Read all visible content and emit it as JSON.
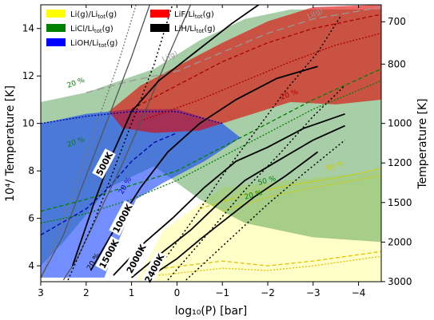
{
  "chart_data": {
    "type": "area",
    "title": "",
    "xlabel": "log₁₀(P) [bar]",
    "ylabel": "10⁴/ Temperature [K]",
    "y2label": "Temperature [K]",
    "xlim": [
      3,
      -4.5
    ],
    "ylim": [
      3.33,
      15
    ],
    "x_ticks": [
      "3",
      "2",
      "1",
      "0",
      "−1",
      "−2",
      "−3",
      "−4"
    ],
    "x_tick_values": [
      3,
      2,
      1,
      0,
      -1,
      -2,
      -3,
      -4
    ],
    "y_ticks": [
      "4",
      "6",
      "8",
      "10",
      "12",
      "14"
    ],
    "y_tick_values": [
      4,
      6,
      8,
      10,
      12,
      14
    ],
    "y2_ticks": [
      "700",
      "800",
      "1000",
      "1200",
      "1500",
      "2000",
      "3000"
    ],
    "y2_tick_values": [
      700,
      800,
      1000,
      1200,
      1500,
      2000,
      3000
    ],
    "legend_position": "top-left",
    "legend": [
      {
        "label": "Li(g)/Li",
        "sub": "tot",
        "tail": "(g)",
        "color": "#ffff00"
      },
      {
        "label": "LiF/Li",
        "sub": "tot",
        "tail": "(g)",
        "color": "#ff0000"
      },
      {
        "label": "LiCl/Li",
        "sub": "tot",
        "tail": "(g)",
        "color": "#008000"
      },
      {
        "label": "LiH/Li",
        "sub": "tot",
        "tail": "(g)",
        "color": "#000000"
      },
      {
        "label": "LiOH/Li",
        "sub": "tot",
        "tail": "(g)",
        "color": "#0000ff"
      }
    ],
    "series": [
      {
        "name": "Li(g)/Litot(g)",
        "color": "#ffff99",
        "opacity": 0.55,
        "polygon": [
          [
            3,
            3.33
          ],
          [
            0.9,
            3.33
          ],
          [
            0.3,
            5.5
          ],
          [
            -1,
            7.3
          ],
          [
            -2.5,
            7.6
          ],
          [
            -4.5,
            8.0
          ],
          [
            -4.5,
            3.33
          ],
          [
            3,
            3.33
          ]
        ]
      },
      {
        "name": "LiCl/Litot(g)",
        "color": "#2e8b2e",
        "opacity": 0.42,
        "polygon": [
          [
            3,
            10.9
          ],
          [
            2,
            11.3
          ],
          [
            0.5,
            12.3
          ],
          [
            -0.5,
            13.5
          ],
          [
            -1.5,
            14.4
          ],
          [
            -2.5,
            14.8
          ],
          [
            -4.5,
            14.8
          ],
          [
            -4.5,
            5.0
          ],
          [
            -3,
            5.2
          ],
          [
            -1.5,
            5.8
          ],
          [
            -0.5,
            6.8
          ],
          [
            0.5,
            8.2
          ],
          [
            1.5,
            7.3
          ],
          [
            2.5,
            5.0
          ],
          [
            3,
            4.0
          ]
        ]
      },
      {
        "name": "LiOH/Litot(g)",
        "color": "#0033ff",
        "opacity": 0.55,
        "polygon": [
          [
            3,
            3.5
          ],
          [
            3,
            10.0
          ],
          [
            2,
            10.4
          ],
          [
            1,
            10.6
          ],
          [
            0,
            10.6
          ],
          [
            -1,
            10.0
          ],
          [
            -1.4,
            9.4
          ],
          [
            -0.6,
            8.4
          ],
          [
            0.3,
            7.5
          ],
          [
            0.9,
            6.8
          ],
          [
            1.3,
            5.0
          ],
          [
            1.6,
            3.5
          ]
        ]
      },
      {
        "name": "LiF/Litot(g)",
        "color": "#e00000",
        "opacity": 0.6,
        "polygon": [
          [
            1.5,
            10.5
          ],
          [
            0.8,
            11.6
          ],
          [
            0,
            12.4
          ],
          [
            -1,
            13.4
          ],
          [
            -2,
            14.3
          ],
          [
            -3,
            14.9
          ],
          [
            -4.5,
            15.0
          ],
          [
            -4.5,
            11.0
          ],
          [
            -3.5,
            10.8
          ],
          [
            -2.5,
            10.9
          ],
          [
            -1.5,
            10.3
          ],
          [
            -0.5,
            9.7
          ],
          [
            0.5,
            9.6
          ],
          [
            1.2,
            9.8
          ]
        ]
      },
      {
        "name": "LiH/Litot(g)",
        "color": "#000000",
        "opacity": 0.0,
        "polygon": []
      }
    ],
    "isotherms": [
      {
        "label": "500K",
        "T": 500
      },
      {
        "label": "1000K",
        "T": 1000
      },
      {
        "label": "1500K",
        "T": 1500
      },
      {
        "label": "2000K",
        "T": 2000
      },
      {
        "label": "2400K",
        "T": 2400
      }
    ],
    "annotations": [
      "20 %",
      "20 %",
      "20 %",
      "20 %",
      "20 %",
      "50 %",
      "50 %",
      "20 %",
      "Li(g)",
      "Li(g)"
    ]
  }
}
